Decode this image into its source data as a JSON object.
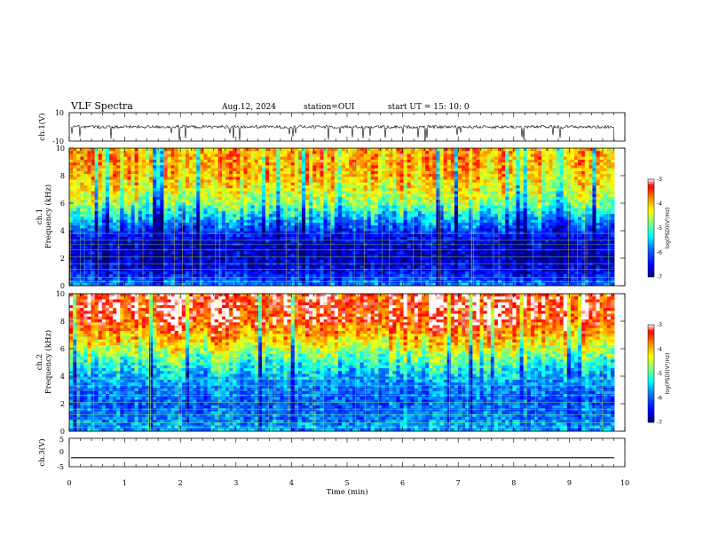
{
  "header": {
    "title": "VLF Spectra",
    "date": "Aug.12, 2024",
    "station": "station=OUI",
    "start_ut": "start UT = 15: 10: 0"
  },
  "chart_data": [
    {
      "panel": "ch1-waveform",
      "type": "line",
      "ylabel": "ch.1(V)",
      "ylim": [
        -10,
        10
      ],
      "y_tick_labels": [
        "10",
        "-10"
      ],
      "xlim": [
        0,
        10
      ],
      "baseline": 0,
      "note_values": "noisy waveform centered near 0 V with spikes to about -10 V"
    },
    {
      "panel": "ch1-spectrogram",
      "type": "heatmap",
      "ylabel": "ch.1\nFrequency (kHz)",
      "ylim": [
        0,
        10
      ],
      "y_tick_labels": [
        "0",
        "2",
        "4",
        "6",
        "8",
        "10"
      ],
      "xlim": [
        0,
        9.83
      ],
      "colorbar": {
        "label": "log(PSD)(V²/Hz)",
        "range": [
          -7,
          -3
        ],
        "tick_labels": [
          "-3",
          "-4",
          "-5",
          "-6",
          "-7"
        ]
      },
      "profile": {
        "freq_khz": [
          0,
          1,
          2,
          3,
          4,
          5,
          6,
          7,
          8,
          9,
          10
        ],
        "log_psd": [
          -5.8,
          -6.5,
          -6.8,
          -6.7,
          -6.3,
          -5.6,
          -4.8,
          -4.4,
          -4.1,
          -4.0,
          -4.0
        ]
      }
    },
    {
      "panel": "ch2-spectrogram",
      "type": "heatmap",
      "ylabel": "ch.2\nFrequency (kHz)",
      "ylim": [
        0,
        10
      ],
      "y_tick_labels": [
        "0",
        "2",
        "4",
        "6",
        "8",
        "10"
      ],
      "xlim": [
        0,
        9.83
      ],
      "colorbar": {
        "label": "log(PSD)(V²/Hz)",
        "range": [
          -7,
          -3
        ],
        "tick_labels": [
          "-3",
          "-4",
          "-5",
          "-6",
          "-7"
        ]
      },
      "profile": {
        "freq_khz": [
          0,
          1,
          2,
          3,
          4,
          5,
          6,
          7,
          8,
          9,
          10
        ],
        "log_psd": [
          -5.6,
          -5.9,
          -6.0,
          -5.9,
          -5.6,
          -5.1,
          -4.5,
          -3.9,
          -3.4,
          -3.3,
          -3.3
        ]
      }
    },
    {
      "panel": "ch3-waveform",
      "type": "line",
      "ylabel": "ch.3(V)",
      "ylim": [
        -5,
        5
      ],
      "y_tick_labels": [
        "5",
        "0",
        "-5"
      ],
      "xlim": [
        0,
        10
      ],
      "constant_value": -1.8
    }
  ],
  "time_axis": {
    "xlabel": "Time (min)",
    "tick_labels": [
      "0",
      "1",
      "2",
      "3",
      "4",
      "5",
      "6",
      "7",
      "8",
      "9",
      "10"
    ]
  },
  "colors": {
    "scale": [
      "#00007f",
      "#0000ff",
      "#007fff",
      "#00ffff",
      "#7fff7f",
      "#ffff00",
      "#ff7f00",
      "#ff0000",
      "#ffffff"
    ]
  }
}
